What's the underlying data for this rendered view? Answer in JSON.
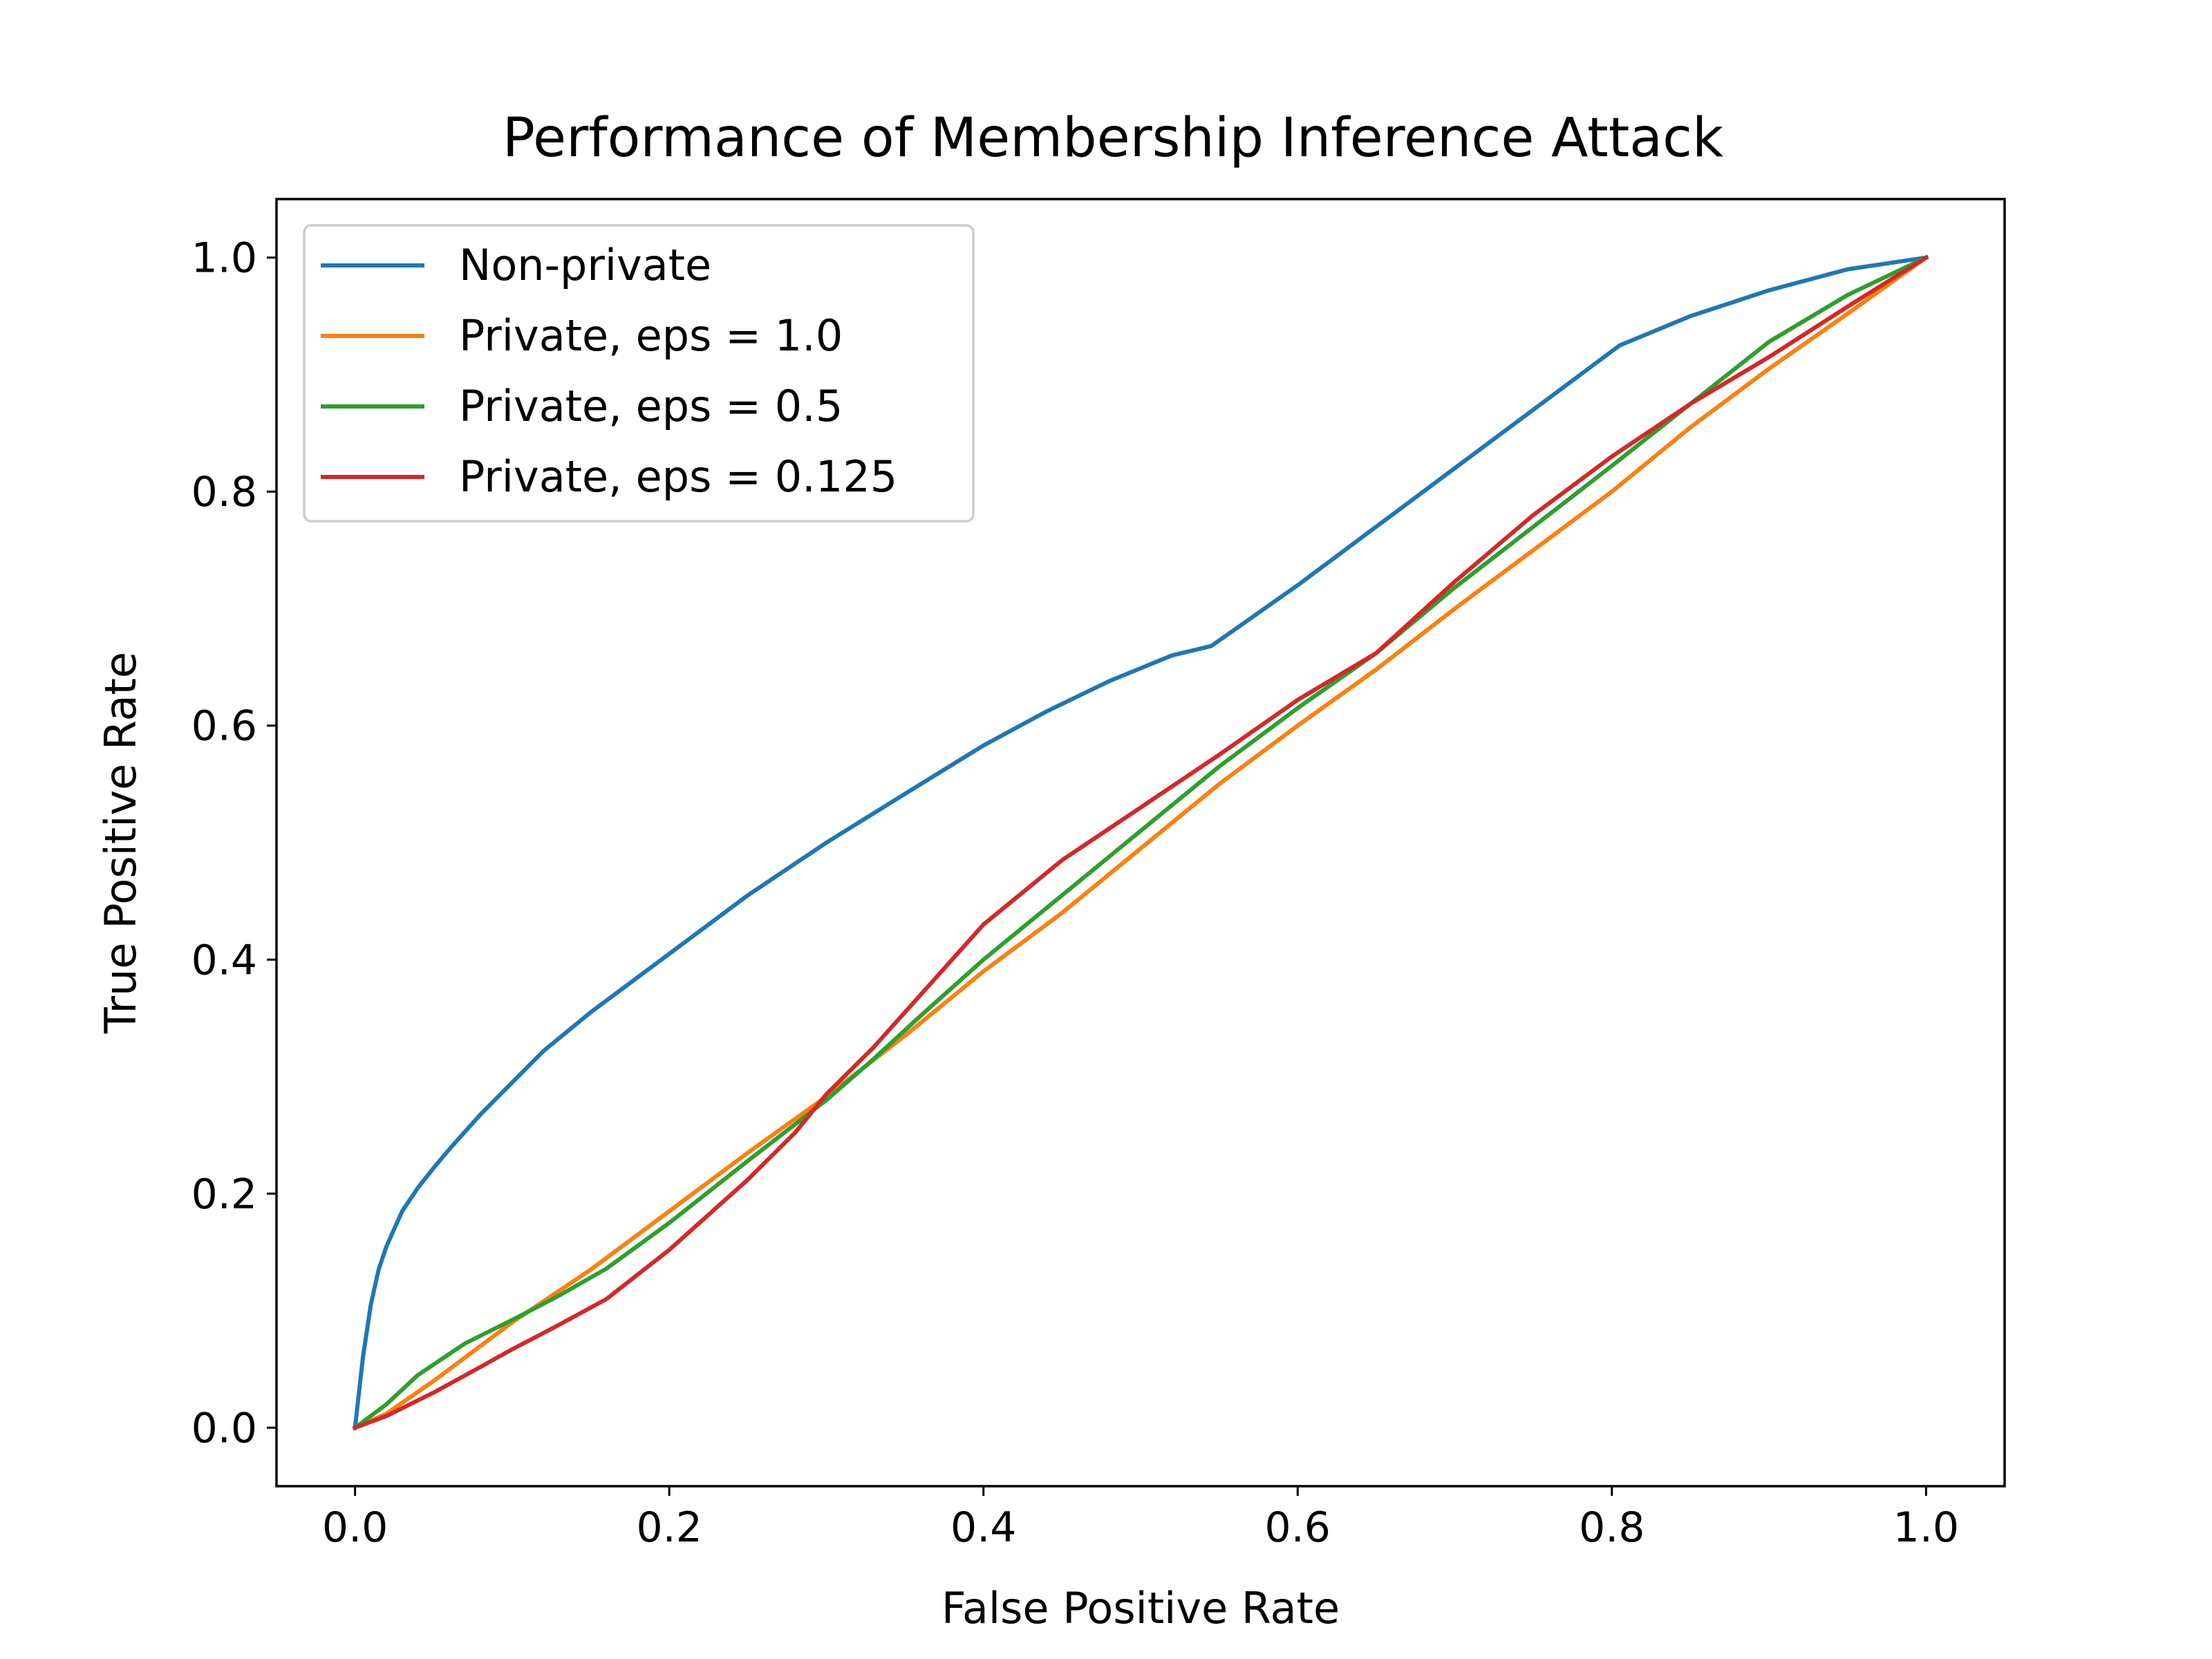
{
  "chart_data": {
    "type": "line",
    "title": "Performance of Membership Inference Attack",
    "xlabel": "False Positive Rate",
    "ylabel": "True Positive Rate",
    "xlim": [
      -0.05,
      1.05
    ],
    "ylim": [
      -0.05,
      1.05
    ],
    "xticks": [
      0.0,
      0.2,
      0.4,
      0.6,
      0.8,
      1.0
    ],
    "yticks": [
      0.0,
      0.2,
      0.4,
      0.6,
      0.8,
      1.0
    ],
    "xtick_labels": [
      "0.0",
      "0.2",
      "0.4",
      "0.6",
      "0.8",
      "1.0"
    ],
    "ytick_labels": [
      "0.0",
      "0.2",
      "0.4",
      "0.6",
      "0.8",
      "1.0"
    ],
    "grid": false,
    "legend_position": "upper-left",
    "series": [
      {
        "name": "Non-private",
        "color": "#1f77b4",
        "x": [
          0.0,
          0.005,
          0.01,
          0.015,
          0.02,
          0.03,
          0.04,
          0.05,
          0.06,
          0.08,
          0.1,
          0.12,
          0.15,
          0.18,
          0.2,
          0.22,
          0.25,
          0.28,
          0.3,
          0.33,
          0.36,
          0.4,
          0.44,
          0.48,
          0.52,
          0.545,
          0.6,
          0.7,
          0.8,
          0.805,
          0.85,
          0.9,
          0.95,
          1.0
        ],
        "y": [
          0.0,
          0.06,
          0.105,
          0.135,
          0.155,
          0.185,
          0.205,
          0.222,
          0.238,
          0.268,
          0.295,
          0.322,
          0.355,
          0.385,
          0.405,
          0.425,
          0.455,
          0.482,
          0.5,
          0.525,
          0.55,
          0.583,
          0.612,
          0.638,
          0.66,
          0.668,
          0.72,
          0.82,
          0.92,
          0.925,
          0.95,
          0.972,
          0.99,
          1.0
        ]
      },
      {
        "name": "Private, eps = 1.0",
        "color": "#ff7f0e",
        "x": [
          0.0,
          0.02,
          0.05,
          0.1,
          0.15,
          0.2,
          0.25,
          0.3,
          0.35,
          0.4,
          0.45,
          0.5,
          0.55,
          0.6,
          0.65,
          0.7,
          0.75,
          0.8,
          0.85,
          0.9,
          0.95,
          1.0
        ],
        "y": [
          0.0,
          0.012,
          0.04,
          0.09,
          0.135,
          0.185,
          0.235,
          0.283,
          0.335,
          0.39,
          0.44,
          0.495,
          0.55,
          0.6,
          0.648,
          0.7,
          0.75,
          0.8,
          0.855,
          0.905,
          0.952,
          1.0
        ]
      },
      {
        "name": "Private, eps = 0.5",
        "color": "#2ca02c",
        "x": [
          0.0,
          0.02,
          0.04,
          0.07,
          0.1,
          0.13,
          0.16,
          0.2,
          0.25,
          0.3,
          0.33,
          0.36,
          0.4,
          0.45,
          0.5,
          0.55,
          0.6,
          0.65,
          0.7,
          0.75,
          0.8,
          0.85,
          0.9,
          0.95,
          1.0
        ],
        "y": [
          0.0,
          0.02,
          0.045,
          0.072,
          0.092,
          0.113,
          0.136,
          0.175,
          0.228,
          0.28,
          0.315,
          0.352,
          0.4,
          0.455,
          0.51,
          0.565,
          0.615,
          0.662,
          0.718,
          0.77,
          0.822,
          0.875,
          0.928,
          0.968,
          1.0
        ]
      },
      {
        "name": "Private, eps = 0.125",
        "color": "#d62728",
        "x": [
          0.0,
          0.02,
          0.05,
          0.08,
          0.1,
          0.13,
          0.16,
          0.2,
          0.25,
          0.28,
          0.3,
          0.33,
          0.36,
          0.4,
          0.45,
          0.5,
          0.55,
          0.6,
          0.65,
          0.7,
          0.75,
          0.8,
          0.85,
          0.9,
          0.95,
          1.0
        ],
        "y": [
          0.0,
          0.01,
          0.03,
          0.052,
          0.067,
          0.088,
          0.11,
          0.152,
          0.212,
          0.252,
          0.285,
          0.325,
          0.37,
          0.43,
          0.485,
          0.53,
          0.575,
          0.622,
          0.662,
          0.723,
          0.78,
          0.83,
          0.875,
          0.915,
          0.958,
          1.0
        ]
      }
    ]
  }
}
